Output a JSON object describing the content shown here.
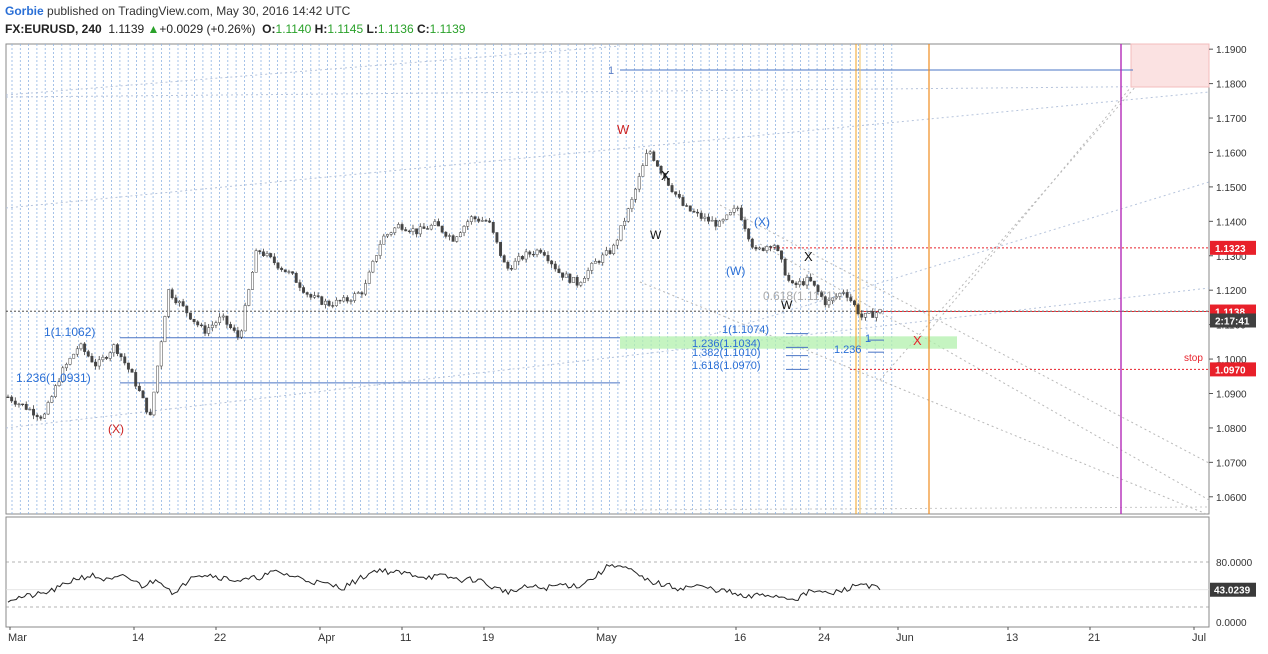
{
  "header": {
    "author": "Gorbie",
    "published": "published on TradingView.com, May 30, 2016 14:42 UTC",
    "symbol": "FX:EURUSD, 240",
    "last": "1.1139",
    "change_arrow": "▲",
    "change": "+0.0029 (+0.26%)",
    "open_label": "O:",
    "open": "1.1140",
    "high_label": "H:",
    "high": "1.1145",
    "low_label": "L:",
    "low": "1.1136",
    "close_label": "C:",
    "close": "1.1139"
  },
  "chart_data": [
    {
      "type": "candlestick",
      "symbol": "FX:EURUSD",
      "interval": "240",
      "ylim": [
        1.055,
        1.1915
      ],
      "y_ticks": [
        "1.1900",
        "1.1800",
        "1.1700",
        "1.1600",
        "1.1500",
        "1.1400",
        "1.1300",
        "1.1200",
        "1.1100",
        "1.1000",
        "1.0900",
        "1.0800",
        "1.0700",
        "1.0600"
      ],
      "x_labels": [
        "Mar",
        "14",
        "22",
        "Apr",
        "11",
        "19",
        "May",
        "16",
        "24",
        "Jun",
        "13",
        "21",
        "Jul"
      ],
      "price_path": [
        [
          "Mar",
          1.089
        ],
        [
          "",
          1.086
        ],
        [
          "",
          1.083
        ],
        [
          "",
          1.096
        ],
        [
          "",
          1.104
        ],
        [
          "",
          1.098
        ],
        [
          "",
          1.104
        ],
        [
          "",
          1.095
        ],
        [
          "",
          1.083
        ],
        [
          "",
          1.12
        ],
        [
          "",
          1.114
        ],
        [
          "",
          1.108
        ],
        [
          "14",
          1.112
        ],
        [
          "",
          1.106
        ],
        [
          "",
          1.132
        ],
        [
          "",
          1.128
        ],
        [
          "",
          1.124
        ],
        [
          "22",
          1.118
        ],
        [
          "",
          1.116
        ],
        [
          "",
          1.117
        ],
        [
          "",
          1.12
        ],
        [
          "",
          1.135
        ],
        [
          "Apr",
          1.139
        ],
        [
          "",
          1.137
        ],
        [
          "",
          1.139
        ],
        [
          "",
          1.135
        ],
        [
          "11",
          1.141
        ],
        [
          "",
          1.14
        ],
        [
          "",
          1.126
        ],
        [
          "",
          1.13
        ],
        [
          "19",
          1.132
        ],
        [
          "",
          1.125
        ],
        [
          "",
          1.122
        ],
        [
          "",
          1.128
        ],
        [
          "",
          1.132
        ],
        [
          "",
          1.145
        ],
        [
          "May",
          1.161
        ],
        [
          "",
          1.152
        ],
        [
          "",
          1.144
        ],
        [
          "",
          1.141
        ],
        [
          "",
          1.139
        ],
        [
          "",
          1.144
        ],
        [
          "16",
          1.131
        ],
        [
          "",
          1.134
        ],
        [
          "",
          1.121
        ],
        [
          "",
          1.123
        ],
        [
          "24",
          1.116
        ],
        [
          "",
          1.12
        ],
        [
          "",
          1.112
        ],
        [
          "",
          1.1139
        ]
      ],
      "price_labels": [
        {
          "text": "1.1323",
          "value": 1.1323,
          "color": "#e8202a"
        },
        {
          "text": "1.1138",
          "value": 1.1138,
          "color": "#e8202a"
        },
        {
          "text": "2:17:41",
          "value": 1.1112,
          "color": "#404040"
        },
        {
          "text": "1.0970",
          "value": 1.097,
          "color": "#e8202a"
        }
      ],
      "annotations": [
        {
          "text": "1",
          "color": "#5b7ec6"
        },
        {
          "text": "W",
          "color": "#cc2222"
        },
        {
          "text": "X",
          "color": "#111111"
        },
        {
          "text": "W",
          "color": "#111111"
        },
        {
          "text": "(X)",
          "color": "#2a6fd6"
        },
        {
          "text": "X",
          "color": "#111111"
        },
        {
          "text": "(W)",
          "color": "#2a6fd6"
        },
        {
          "text": "W",
          "color": "#111111"
        },
        {
          "text": "0.618(1.1171)",
          "color": "#aaaaaa"
        },
        {
          "text": "1(1.1074)",
          "color": "#2a6fd6"
        },
        {
          "text": "1.236(1.1034)",
          "color": "#2a6fd6"
        },
        {
          "text": "1.382(1.1010)",
          "color": "#2a6fd6"
        },
        {
          "text": "1.618(1.0970)",
          "color": "#2a6fd6"
        },
        {
          "text": "1",
          "color": "#2a6fd6"
        },
        {
          "text": "1.236",
          "color": "#2a6fd6"
        },
        {
          "text": "X",
          "color": "#e8202a"
        },
        {
          "text": "1(1.1062)",
          "color": "#2a6fd6"
        },
        {
          "text": "1.236(1.0931)",
          "color": "#2a6fd6"
        },
        {
          "text": "(X)",
          "color": "#cc2222"
        },
        {
          "text": "stop",
          "color": "#e8202a"
        }
      ]
    },
    {
      "type": "line",
      "name": "",
      "ylim": [
        0,
        100
      ],
      "y_ticks": [
        "80.0000",
        "0.0000"
      ],
      "current_value": "43.0239",
      "values": [
        30,
        34,
        37,
        45,
        58,
        62,
        55,
        61,
        48,
        57,
        36,
        64,
        63,
        58,
        55,
        60,
        67,
        61,
        55,
        50,
        46,
        58,
        70,
        66,
        64,
        60,
        61,
        56,
        57,
        45,
        40,
        47,
        45,
        50,
        48,
        60,
        78,
        70,
        56,
        50,
        45,
        48,
        44,
        40,
        32,
        37,
        34,
        31,
        42,
        37,
        44,
        52,
        43
      ]
    }
  ]
}
